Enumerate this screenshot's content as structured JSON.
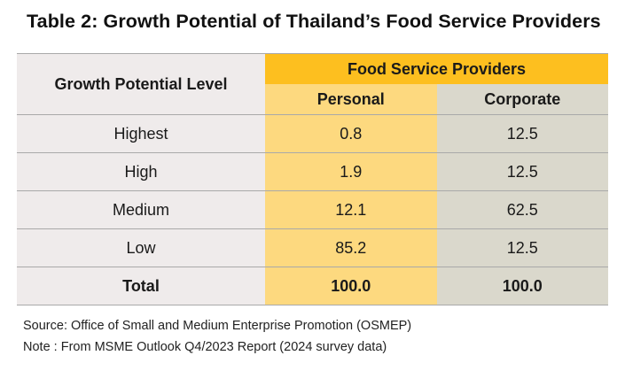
{
  "title": "Table 2: Growth Potential of Thailand’s  Food Service Providers",
  "table": {
    "row_header": "Growth Potential Level",
    "group_header": "Food Service  Providers",
    "columns": [
      "Personal",
      "Corporate"
    ],
    "rows": [
      {
        "level": "Highest",
        "personal": "0.8",
        "corporate": "12.5"
      },
      {
        "level": "High",
        "personal": "1.9",
        "corporate": "12.5"
      },
      {
        "level": "Medium",
        "personal": "12.1",
        "corporate": "62.5"
      },
      {
        "level": "Low",
        "personal": "85.2",
        "corporate": "12.5"
      }
    ],
    "total": {
      "level": "Total",
      "personal": "100.0",
      "corporate": "100.0"
    }
  },
  "source": "Source: Office of Small and Medium Enterprise Promotion (OSMEP)",
  "note": "Note : From MSME Outlook Q4/2023 Report (2024 survey data)",
  "colors": {
    "group_header_bg": "#fdbf1f",
    "personal_bg": "#fdd97f",
    "corporate_bg": "#dad8cc",
    "level_bg": "#efebeb"
  }
}
